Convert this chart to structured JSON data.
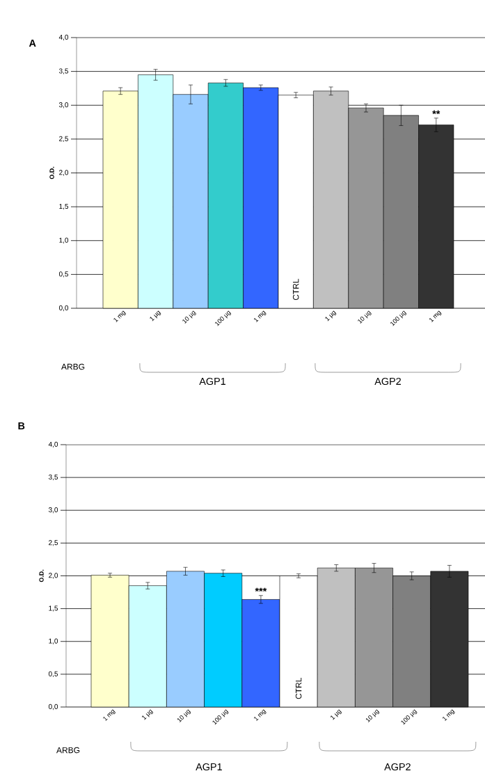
{
  "chart_data": [
    {
      "type": "bar",
      "title": "A",
      "ylabel": "O.D.",
      "categories": [
        "1 mg",
        "1 µg",
        "10 µg",
        "100 µg",
        "1 mg",
        "CTRL",
        "1 µg",
        "10 µg",
        "100 µg",
        "1 mg"
      ],
      "values": [
        3.21,
        3.45,
        3.16,
        3.33,
        3.26,
        3.15,
        3.21,
        2.96,
        2.85,
        2.71
      ],
      "errors": [
        0.05,
        0.08,
        0.14,
        0.05,
        0.04,
        0.04,
        0.06,
        0.06,
        0.15,
        0.1
      ],
      "colors": [
        "#ffffcc",
        "#ccffff",
        "#99ccff",
        "#33cccc",
        "#3366ff",
        "#ffffff",
        "#c0c0c0",
        "#969696",
        "#808080",
        "#333333"
      ],
      "ylim": [
        0,
        4
      ],
      "yticks": [
        {
          "value": 0,
          "label": "0,0"
        },
        {
          "value": 0.5,
          "label": "0,5"
        },
        {
          "value": 1,
          "label": "1,0"
        },
        {
          "value": 1.5,
          "label": "1,5"
        },
        {
          "value": 2,
          "label": "2,0"
        },
        {
          "value": 2.5,
          "label": "2,5"
        },
        {
          "value": 3,
          "label": "3,0"
        },
        {
          "value": 3.5,
          "label": "3,5"
        },
        {
          "value": 4,
          "label": "4,0"
        }
      ],
      "grid": "y",
      "annotations": [
        "ARBG",
        "AGP1",
        "AGP2",
        "**"
      ]
    },
    {
      "type": "bar",
      "title": "B",
      "ylabel": "O.D.",
      "categories": [
        "1 mg",
        "1 µg",
        "10 µg",
        "100 µg",
        "1 mg",
        "CTRL",
        "1 µg",
        "10 µg",
        "100 µg",
        "1 mg"
      ],
      "values": [
        2.01,
        1.85,
        2.07,
        2.04,
        1.64,
        2.0,
        2.12,
        2.12,
        2.0,
        2.07
      ],
      "errors": [
        0.03,
        0.05,
        0.06,
        0.05,
        0.06,
        0.03,
        0.05,
        0.07,
        0.06,
        0.09
      ],
      "colors": [
        "#ffffcc",
        "#ccffff",
        "#99ccff",
        "#00ccff",
        "#3366ff",
        "#ffffff",
        "#c0c0c0",
        "#969696",
        "#808080",
        "#333333"
      ],
      "ylim": [
        0,
        4
      ],
      "yticks": [
        {
          "value": 0,
          "label": "0,0"
        },
        {
          "value": 0.5,
          "label": "0,5"
        },
        {
          "value": 1,
          "label": "1,0"
        },
        {
          "value": 1.5,
          "label": "1,5"
        },
        {
          "value": 2,
          "label": "2,0"
        },
        {
          "value": 2.5,
          "label": "2,5"
        },
        {
          "value": 3,
          "label": "3,0"
        },
        {
          "value": 3.5,
          "label": "3,5"
        },
        {
          "value": 4,
          "label": "4,0"
        }
      ],
      "grid": "y",
      "annotations": [
        "ARBG",
        "AGP1",
        "AGP2",
        "***"
      ]
    }
  ]
}
